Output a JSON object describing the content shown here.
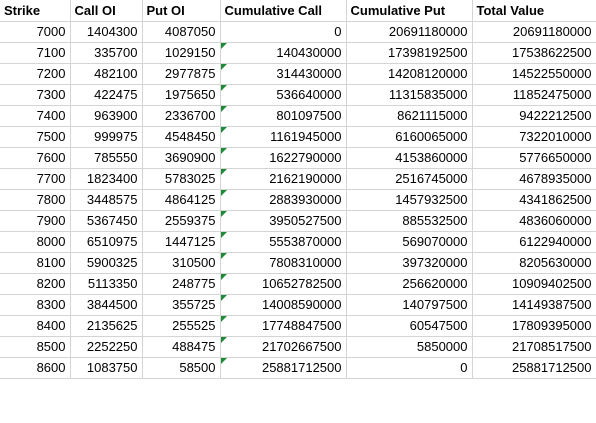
{
  "headers": [
    "Strike",
    "Call OI",
    "Put OI",
    "Cumulative Call",
    "Cumulative Put",
    "Total Value"
  ],
  "rows": [
    [
      "7000",
      "1404300",
      "4087050",
      "0",
      "20691180000",
      "20691180000"
    ],
    [
      "7100",
      "335700",
      "1029150",
      "140430000",
      "17398192500",
      "17538622500"
    ],
    [
      "7200",
      "482100",
      "2977875",
      "314430000",
      "14208120000",
      "14522550000"
    ],
    [
      "7300",
      "422475",
      "1975650",
      "536640000",
      "11315835000",
      "11852475000"
    ],
    [
      "7400",
      "963900",
      "2336700",
      "801097500",
      "8621115000",
      "9422212500"
    ],
    [
      "7500",
      "999975",
      "4548450",
      "1161945000",
      "6160065000",
      "7322010000"
    ],
    [
      "7600",
      "785550",
      "3690900",
      "1622790000",
      "4153860000",
      "5776650000"
    ],
    [
      "7700",
      "1823400",
      "5783025",
      "2162190000",
      "2516745000",
      "4678935000"
    ],
    [
      "7800",
      "3448575",
      "4864125",
      "2883930000",
      "1457932500",
      "4341862500"
    ],
    [
      "7900",
      "5367450",
      "2559375",
      "3950527500",
      "885532500",
      "4836060000"
    ],
    [
      "8000",
      "6510975",
      "1447125",
      "5553870000",
      "569070000",
      "6122940000"
    ],
    [
      "8100",
      "5900325",
      "310500",
      "7808310000",
      "397320000",
      "8205630000"
    ],
    [
      "8200",
      "5113350",
      "248775",
      "10652782500",
      "256620000",
      "10909402500"
    ],
    [
      "8300",
      "3844500",
      "355725",
      "14008590000",
      "140797500",
      "14149387500"
    ],
    [
      "8400",
      "2135625",
      "255525",
      "17748847500",
      "60547500",
      "17809395000"
    ],
    [
      "8500",
      "2252250",
      "488475",
      "21702667500",
      "5850000",
      "21708517500"
    ],
    [
      "8600",
      "1083750",
      "58500",
      "25881712500",
      "0",
      "25881712500"
    ]
  ],
  "colors": {
    "gridline": "#d4d4d4",
    "error_indicator": "#1e8a3a"
  }
}
